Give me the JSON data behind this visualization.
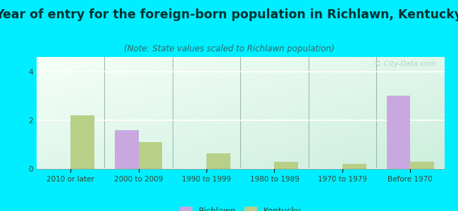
{
  "title": "Year of entry for the foreign-born population in Richlawn, Kentucky",
  "subtitle": "(Note: State values scaled to Richlawn population)",
  "categories": [
    "2010 or later",
    "2000 to 2009",
    "1990 to 1999",
    "1980 to 1989",
    "1970 to 1979",
    "Before 1970"
  ],
  "richlawn_values": [
    0,
    1.6,
    0,
    0,
    0,
    3.0
  ],
  "kentucky_values": [
    2.2,
    1.1,
    0.65,
    0.3,
    0.2,
    0.3
  ],
  "richlawn_color": "#c9a8e0",
  "kentucky_color": "#b8cf88",
  "background_outer": "#00eeff",
  "background_plot_tl": "#cceedd",
  "background_plot_br": "#f5fff8",
  "ylim": [
    0,
    4.6
  ],
  "yticks": [
    0,
    2,
    4
  ],
  "bar_width": 0.35,
  "title_fontsize": 12.5,
  "subtitle_fontsize": 8.5,
  "tick_fontsize": 7.5,
  "legend_fontsize": 8.5,
  "title_color": "#003333",
  "subtitle_color": "#336666",
  "watermark_color": "#aacccc"
}
